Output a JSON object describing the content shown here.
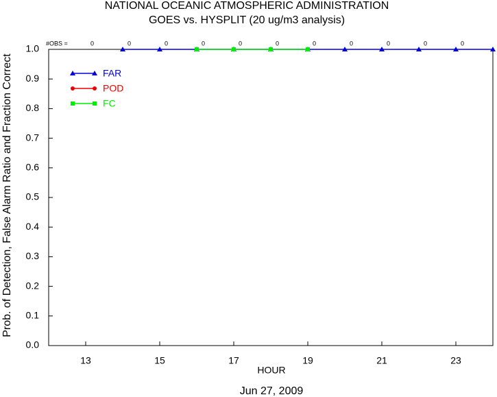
{
  "chart_data": {
    "type": "line",
    "title": "NATIONAL OCEANIC ATMOSPHERIC ADMINISTRATION",
    "subtitle": "GOES vs. HYSPLIT  (20 ug/m3 analysis)",
    "xlabel": "HOUR",
    "ylabel": "Prob. of Detection, False Alarm Ratio and Fraction Correct",
    "date": "Jun 27, 2009",
    "xlim": [
      12,
      24
    ],
    "xticks": [
      13,
      15,
      17,
      19,
      21,
      23
    ],
    "ylim": [
      0,
      1
    ],
    "yticks": [
      {
        "value": 0,
        "label": "0.0"
      },
      {
        "value": 0.1,
        "label": "0.1"
      },
      {
        "value": 0.2,
        "label": "0.2"
      },
      {
        "value": 0.3,
        "label": "0.3"
      },
      {
        "value": 0.4,
        "label": "0.4"
      },
      {
        "value": 0.5,
        "label": "0.5"
      },
      {
        "value": 0.6,
        "label": "0.6"
      },
      {
        "value": 0.7,
        "label": "0.7"
      },
      {
        "value": 0.8,
        "label": "0.8"
      },
      {
        "value": 0.9,
        "label": "0.9"
      },
      {
        "value": 1,
        "label": "1.0"
      }
    ],
    "obs": {
      "label": "#OBS =",
      "x": [
        13,
        14,
        15,
        16,
        17,
        18,
        19,
        20,
        21,
        22,
        23
      ],
      "values": [
        0,
        0,
        0,
        0,
        0,
        0,
        0,
        0,
        0,
        0,
        0
      ]
    },
    "series": [
      {
        "name": "FAR",
        "color": "#0000dd",
        "marker": "triangle",
        "x": [
          14,
          15,
          16,
          17,
          18,
          19,
          20,
          21,
          22,
          23,
          24
        ],
        "values": [
          1,
          1,
          1,
          1,
          1,
          1,
          1,
          1,
          1,
          1,
          1
        ]
      },
      {
        "name": "POD",
        "color": "#ee0000",
        "marker": "circle",
        "x": [],
        "values": []
      },
      {
        "name": "FC",
        "color": "#00ee00",
        "marker": "square",
        "x": [
          16,
          17,
          18,
          19
        ],
        "values": [
          1,
          1,
          1,
          1
        ]
      }
    ]
  }
}
